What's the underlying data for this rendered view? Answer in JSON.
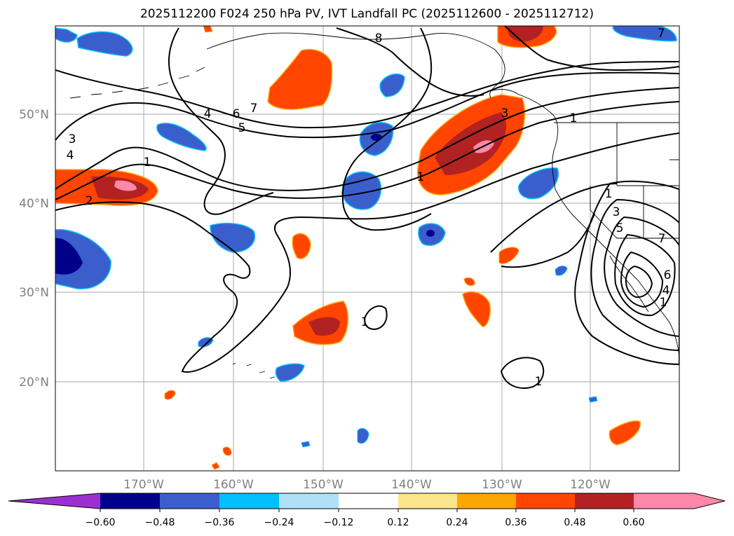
{
  "title": "2025112200 F024 250 hPa PV, IVT Landfall PC (2025112600 - 2025112712)",
  "map": {
    "lat_labels": [
      "50°N",
      "40°N",
      "30°N",
      "20°N"
    ],
    "lon_labels": [
      "170°W",
      "160°W",
      "150°W",
      "140°W",
      "130°W",
      "120°W"
    ]
  },
  "contour_labels": [
    "8",
    "7",
    "6",
    "5",
    "4",
    "3",
    "4",
    "2",
    "1",
    "1",
    "3",
    "1",
    "1",
    "3",
    "5",
    "6",
    "7",
    "4",
    "1",
    "1",
    "1",
    "7"
  ],
  "colorbar": {
    "ticks": [
      "−0.60",
      "−0.48",
      "−0.36",
      "−0.24",
      "−0.12",
      "0.12",
      "0.24",
      "0.36",
      "0.48",
      "0.60"
    ],
    "colors": [
      "#9b30d0",
      "#00008b",
      "#3a5fcd",
      "#00bfff",
      "#b0e0f8",
      "#ffffff",
      "#fce68c",
      "#ffa500",
      "#ff4500",
      "#b22222",
      "#ff88aa",
      "#ff88aa"
    ]
  },
  "colors": {
    "grid": "#aaaaaa",
    "axis_label": "#808080",
    "contour": "#000000"
  }
}
